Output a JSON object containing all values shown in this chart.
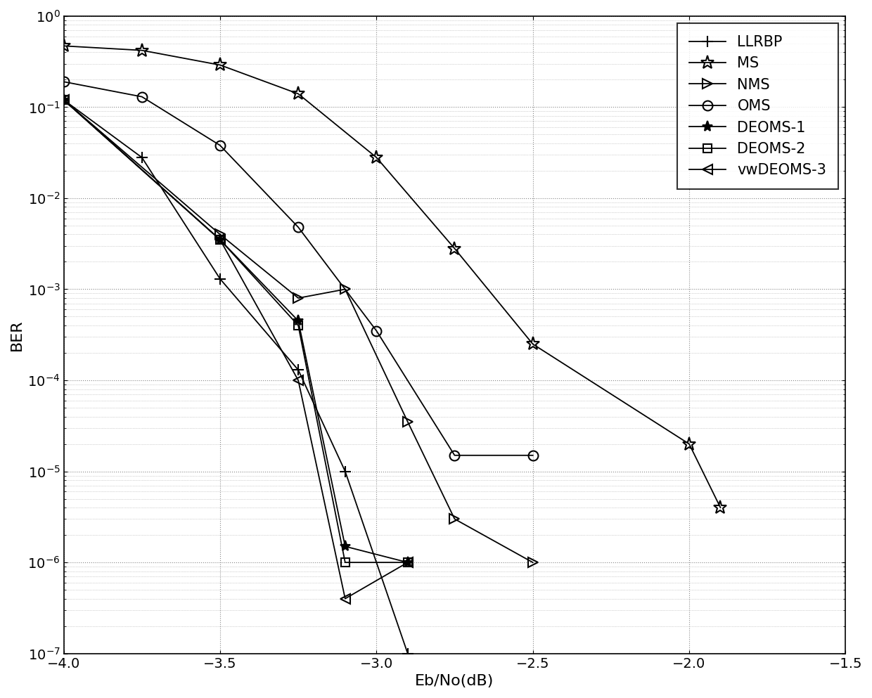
{
  "title": "",
  "xlabel": "Eb/No(dB)",
  "ylabel": "BER",
  "xlim": [
    -4,
    -1.5
  ],
  "ylim_log": [
    -7,
    0
  ],
  "background_color": "#ffffff",
  "series": [
    {
      "label": "LLRBP",
      "marker": "+",
      "color": "#000000",
      "linewidth": 1.3,
      "markersize": 11,
      "markerfacecolor": "auto",
      "x": [
        -4.0,
        -3.75,
        -3.5,
        -3.25,
        -3.1,
        -2.9
      ],
      "y": [
        0.12,
        0.028,
        0.0013,
        0.00013,
        1e-05,
        1e-07
      ]
    },
    {
      "label": "MS",
      "marker": "*",
      "color": "#000000",
      "linewidth": 1.3,
      "markersize": 14,
      "markerfacecolor": "none",
      "x": [
        -4.0,
        -3.75,
        -3.5,
        -3.25,
        -3.0,
        -2.75,
        -2.5,
        -2.0,
        -1.9
      ],
      "y": [
        0.47,
        0.42,
        0.29,
        0.14,
        0.028,
        0.0028,
        0.00025,
        2e-05,
        4e-06
      ]
    },
    {
      "label": "NMS",
      "marker": ">",
      "color": "#000000",
      "linewidth": 1.3,
      "markersize": 10,
      "markerfacecolor": "none",
      "x": [
        -4.0,
        -3.5,
        -3.25,
        -3.1,
        -2.9,
        -2.75,
        -2.5
      ],
      "y": [
        0.12,
        0.004,
        0.0008,
        0.001,
        3.5e-05,
        3e-06,
        1e-06
      ]
    },
    {
      "label": "OMS",
      "marker": "o",
      "color": "#000000",
      "linewidth": 1.3,
      "markersize": 10,
      "markerfacecolor": "none",
      "x": [
        -4.0,
        -3.75,
        -3.5,
        -3.25,
        -3.0,
        -2.75,
        -2.5
      ],
      "y": [
        0.19,
        0.13,
        0.038,
        0.0048,
        0.00035,
        1.5e-05,
        1.5e-05
      ]
    },
    {
      "label": "DEOMS-1",
      "marker": "*",
      "color": "#000000",
      "linewidth": 1.3,
      "markersize": 11,
      "markerfacecolor": "auto",
      "x": [
        -4.0,
        -3.5,
        -3.25,
        -3.1,
        -2.9
      ],
      "y": [
        0.12,
        0.0035,
        0.00045,
        1.5e-06,
        1e-06
      ]
    },
    {
      "label": "DEOMS-2",
      "marker": "s",
      "color": "#000000",
      "linewidth": 1.3,
      "markersize": 9,
      "markerfacecolor": "none",
      "x": [
        -4.0,
        -3.5,
        -3.25,
        -3.1,
        -2.9
      ],
      "y": [
        0.12,
        0.0035,
        0.0004,
        1e-06,
        1e-06
      ]
    },
    {
      "label": "vwDEOMS-3",
      "marker": "<",
      "color": "#000000",
      "linewidth": 1.3,
      "markersize": 10,
      "markerfacecolor": "none",
      "x": [
        -4.0,
        -3.5,
        -3.25,
        -3.1,
        -2.9
      ],
      "y": [
        0.12,
        0.0035,
        0.0001,
        4e-07,
        1e-06
      ]
    }
  ],
  "legend_loc": "upper right",
  "legend_fontsize": 15,
  "tick_fontsize": 14,
  "label_fontsize": 16
}
